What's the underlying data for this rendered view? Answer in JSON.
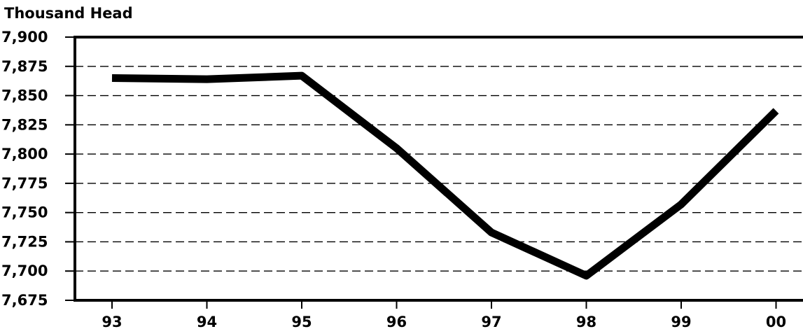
{
  "chart_data": {
    "type": "line",
    "ylabel": "Thousand Head",
    "categories": [
      "93",
      "94",
      "95",
      "96",
      "97",
      "98",
      "99",
      "00"
    ],
    "series": [
      {
        "values": [
          7865,
          7864,
          7867,
          7805,
          7733,
          7696,
          7757,
          7837
        ]
      }
    ],
    "ylim": [
      7675,
      7900
    ],
    "yticks": [
      7675,
      7700,
      7725,
      7750,
      7775,
      7800,
      7825,
      7850,
      7875,
      7900
    ],
    "ytick_labels": [
      "7,675",
      "7,700",
      "7,725",
      "7,750",
      "7,775",
      "7,800",
      "7,825",
      "7,850",
      "7,875",
      "7,900"
    ],
    "grid": "horizontal-dashed",
    "line_color": "#000000"
  }
}
